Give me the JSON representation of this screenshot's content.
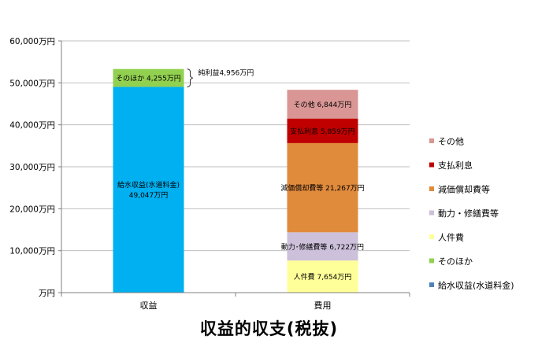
{
  "chart_data": {
    "type": "bar",
    "stacked": true,
    "title": "収益的収支(税抜)",
    "categories": [
      "収益",
      "費用"
    ],
    "ylim": [
      0,
      60000
    ],
    "yticks": [
      0,
      10000,
      20000,
      30000,
      40000,
      50000,
      60000
    ],
    "ytick_labels": [
      "万円",
      "10,000万円",
      "20,000万円",
      "30,000万円",
      "40,000万円",
      "50,000万円",
      "60,000万円"
    ],
    "legend_position": "right",
    "series": [
      {
        "name": "給水収益(水道料金)",
        "color": "#00B0F0",
        "legend_color": "#4F81BD",
        "values": [
          49047,
          null
        ],
        "labels": [
          "給水収益(水道料金)\n49,047万円",
          ""
        ]
      },
      {
        "name": "そのほか",
        "color": "#92D050",
        "values": [
          4255,
          null
        ],
        "labels": [
          "そのほか 4,255万円",
          ""
        ]
      },
      {
        "name": "人件費",
        "color": "#FFFF99",
        "values": [
          null,
          7654
        ],
        "labels": [
          "",
          "人件費 7,654万円"
        ]
      },
      {
        "name": "動力・修繕費等",
        "color": "#CCC0DA",
        "values": [
          null,
          6722
        ],
        "labels": [
          "",
          "動力･修繕費等 6,722万円"
        ]
      },
      {
        "name": "減価償却費等",
        "color": "#E08A3C",
        "values": [
          null,
          21267
        ],
        "labels": [
          "",
          "減価償却費等 21,267万円"
        ]
      },
      {
        "name": "支払利息",
        "color": "#C00000",
        "values": [
          null,
          5859
        ],
        "labels": [
          "",
          "支払利息 5,859万円"
        ]
      },
      {
        "name": "その他",
        "color": "#D99694",
        "values": [
          null,
          6844
        ],
        "labels": [
          "",
          "その他 6,844万円"
        ]
      }
    ],
    "annotations": [
      {
        "text": "純利益4,956万円",
        "from": 49047,
        "to": 53302,
        "category": "収益"
      }
    ]
  }
}
